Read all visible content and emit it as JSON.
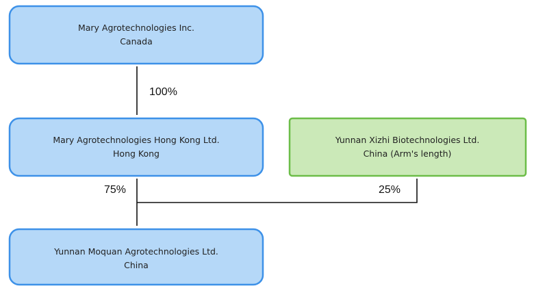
{
  "nodes": [
    {
      "name": "Mary Agrotechnologies Inc.",
      "location": "Canada"
    },
    {
      "name": "Mary Agrotechnologies Hong Kong Ltd.",
      "location": "Hong Kong"
    },
    {
      "name": "Yunnan Xizhi Biotechnologies Ltd.",
      "location": "China (Arm's length)"
    },
    {
      "name": "Yunnan Moquan Agrotechnologies Ltd.",
      "location": "China"
    }
  ],
  "edges": [
    {
      "label": "100%"
    },
    {
      "label": "75%"
    },
    {
      "label": "25%"
    }
  ]
}
